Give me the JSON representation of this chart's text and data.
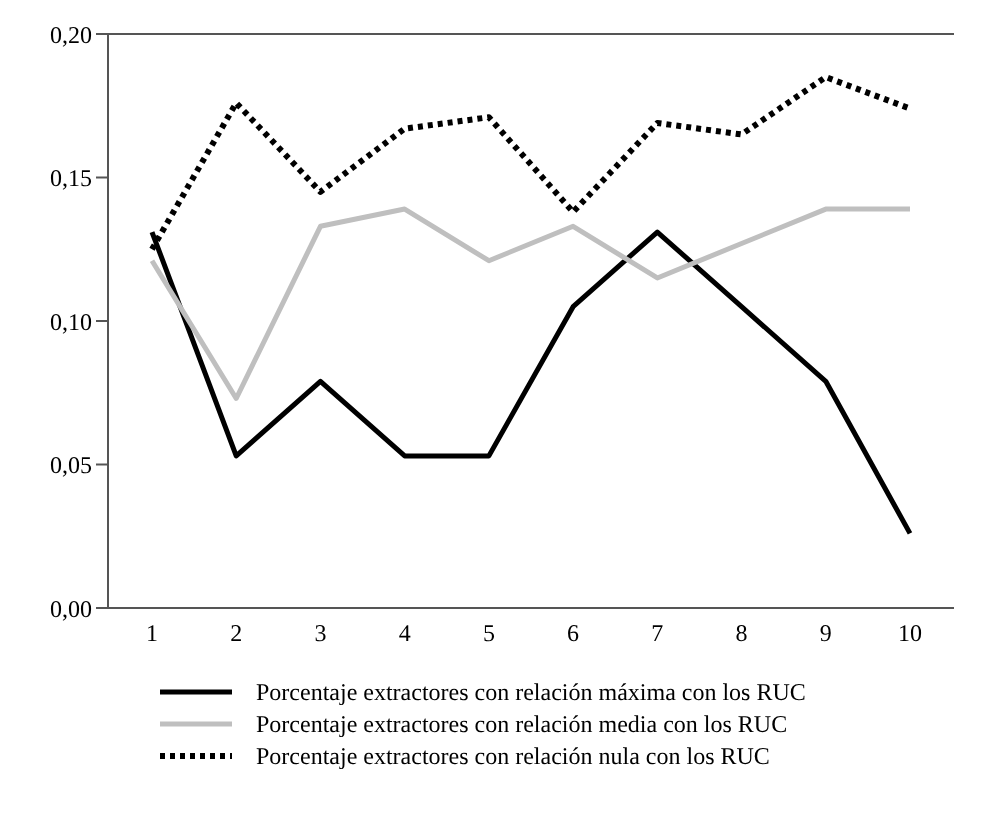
{
  "chart_data": {
    "type": "line",
    "categories": [
      "1",
      "2",
      "3",
      "4",
      "5",
      "6",
      "7",
      "8",
      "9",
      "10"
    ],
    "series": [
      {
        "name": "Porcentaje extractores con relación máxima con los RUC",
        "color": "#000000",
        "line_style": "solid",
        "values": [
          0.131,
          0.053,
          0.079,
          0.053,
          0.053,
          0.105,
          0.131,
          0.105,
          0.079,
          0.026
        ]
      },
      {
        "name": "Porcentaje extractores con relación media con los RUC",
        "color": "#bfbfbf",
        "line_style": "solid",
        "values": [
          0.121,
          0.073,
          0.133,
          0.139,
          0.121,
          0.133,
          0.115,
          0.127,
          0.139,
          0.139
        ]
      },
      {
        "name": "Porcentaje extractores con relación nula con los RUC",
        "color": "#000000",
        "line_style": "dotted",
        "values": [
          0.125,
          0.176,
          0.145,
          0.167,
          0.171,
          0.138,
          0.169,
          0.165,
          0.185,
          0.174
        ]
      }
    ],
    "ylim": [
      0,
      0.2
    ],
    "yticks": [
      {
        "value": 0,
        "label": "0,00"
      },
      {
        "value": 0.05,
        "label": "0,05"
      },
      {
        "value": 0.1,
        "label": "0,10"
      },
      {
        "value": 0.15,
        "label": "0,15"
      },
      {
        "value": 0.2,
        "label": "0,20"
      }
    ],
    "grid": false,
    "legend": "bottom",
    "marker": "none"
  }
}
